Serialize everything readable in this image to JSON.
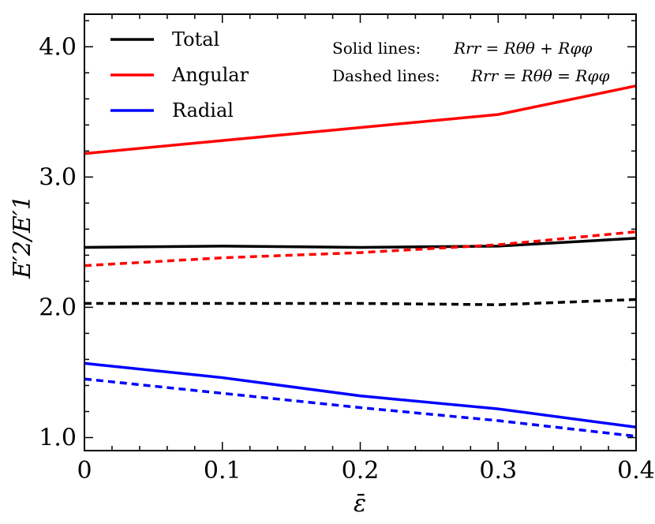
{
  "chart_data": {
    "type": "line",
    "x": [
      0,
      0.1,
      0.2,
      0.3,
      0.4
    ],
    "xlabel": "ε̄",
    "ylabel": "E′2/E′1",
    "xlim": [
      0,
      0.4
    ],
    "ylim": [
      0.9,
      4.25
    ],
    "xticks": [
      "0",
      "0.1",
      "0.2",
      "0.3",
      "0.4"
    ],
    "xtick_values": [
      0,
      0.1,
      0.2,
      0.3,
      0.4
    ],
    "yticks": [
      "1.0",
      "2.0",
      "3.0",
      "4.0"
    ],
    "ytick_values": [
      1.0,
      2.0,
      3.0,
      4.0
    ],
    "grid": false,
    "legend_position": "top-left",
    "series": [
      {
        "name": "Total",
        "style": "solid",
        "color": "#000000",
        "values": [
          2.46,
          2.47,
          2.46,
          2.47,
          2.53
        ]
      },
      {
        "name": "Angular",
        "style": "solid",
        "color": "#ff0000",
        "values": [
          3.18,
          3.28,
          3.38,
          3.48,
          3.7
        ]
      },
      {
        "name": "Radial",
        "style": "solid",
        "color": "#0000ff",
        "values": [
          1.57,
          1.46,
          1.32,
          1.22,
          1.08
        ]
      },
      {
        "name": "Total",
        "style": "dashed",
        "color": "#000000",
        "values": [
          2.03,
          2.03,
          2.03,
          2.02,
          2.06
        ]
      },
      {
        "name": "Angular",
        "style": "dashed",
        "color": "#ff0000",
        "values": [
          2.32,
          2.38,
          2.42,
          2.48,
          2.58
        ]
      },
      {
        "name": "Radial",
        "style": "dashed",
        "color": "#0000ff",
        "values": [
          1.45,
          1.34,
          1.23,
          1.13,
          1.01
        ]
      }
    ],
    "legend": [
      {
        "label": "Total",
        "color": "#000000"
      },
      {
        "label": "Angular",
        "color": "#ff0000"
      },
      {
        "label": "Radial",
        "color": "#0000ff"
      }
    ],
    "annotations": {
      "solid_prefix": "Solid lines:",
      "solid_formula": "Rrr = Rθθ + Rφφ",
      "dashed_prefix": "Dashed lines:",
      "dashed_formula": "Rrr = Rθθ = Rφφ"
    }
  }
}
